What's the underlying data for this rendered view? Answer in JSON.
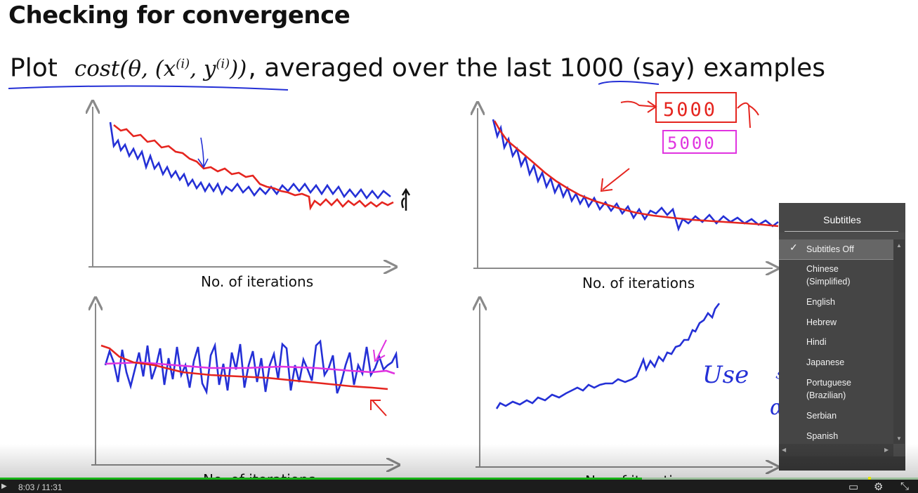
{
  "slide": {
    "title": "Checking for convergence",
    "line_prefix": "Plot",
    "formula": "cost(θ, (x",
    "formula_sup1": "(i)",
    "formula_mid": ", y",
    "formula_sup2": "(i)",
    "formula_end": "))",
    "line_suffix_a": ", averaged over the last ",
    "line_number": "1000",
    "line_suffix_b": " (say) examples",
    "axis_label": "No. of iterations",
    "annotation_box_red": "5000",
    "annotation_box_pink": "5000",
    "annotation_use": "Use",
    "annotation_smaller": "smaller",
    "annotation_alpha": "α"
  },
  "subtitles_menu": {
    "title": "Subtitles",
    "selected": "Subtitles Off",
    "items": [
      {
        "label": "Subtitles Off",
        "selected": true
      },
      {
        "label": "Chinese (Simplified)",
        "selected": false
      },
      {
        "label": "English",
        "selected": false
      },
      {
        "label": "Hebrew",
        "selected": false
      },
      {
        "label": "Hindi",
        "selected": false
      },
      {
        "label": "Japanese",
        "selected": false
      },
      {
        "label": "Portuguese (Brazilian)",
        "selected": false
      },
      {
        "label": "Serbian",
        "selected": false
      },
      {
        "label": "Spanish",
        "selected": false
      }
    ]
  },
  "player": {
    "current_time": "8:03",
    "duration": "11:31",
    "time_display": "8:03  /  11:31",
    "progress_fraction": 0.699,
    "icons": [
      "play-icon",
      "captions-icon",
      "settings-gear-icon",
      "exit-fullscreen-icon"
    ]
  },
  "colors": {
    "blue_ink": "#2430d6",
    "red_ink": "#e5251f",
    "pink_ink": "#e033e0",
    "menu_bg": "#4b4b4b",
    "progress": "#16b316"
  }
}
